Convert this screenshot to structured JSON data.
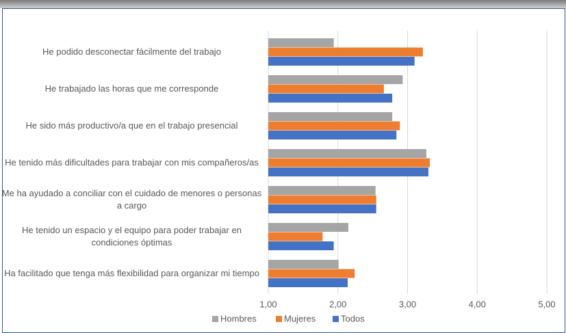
{
  "chart_data": {
    "type": "bar",
    "orientation": "horizontal",
    "categories": [
      "He podido desconectar fácilmente del trabajo",
      "He trabajado las horas que me corresponde",
      "He sido más productivo/a que en el trabajo presencial",
      "He tenido más dificultades para trabajar con mis compañeros/as",
      "Me ha ayudado a conciliar con el cuidado de menores o personas a cargo",
      "He tenido un espacio y el equipo para poder trabajar en condiciones óptimas",
      "Ha facilitado que tenga más flexibilidad para organizar mi tiempo"
    ],
    "series": [
      {
        "name": "Hombres",
        "color": "#a5a5a5",
        "values": [
          1.94,
          2.93,
          2.78,
          3.27,
          2.54,
          2.15,
          2.01
        ]
      },
      {
        "name": "Mujeres",
        "color": "#ed7d31",
        "values": [
          3.22,
          2.66,
          2.89,
          3.32,
          2.55,
          1.78,
          2.24
        ]
      },
      {
        "name": "Todos",
        "color": "#4472c4",
        "values": [
          3.1,
          2.78,
          2.84,
          3.3,
          2.55,
          1.94,
          2.14
        ]
      }
    ],
    "xlim": [
      1,
      5
    ],
    "xticks": [
      {
        "value": 1,
        "label": "1,00"
      },
      {
        "value": 2,
        "label": "2,00"
      },
      {
        "value": 3,
        "label": "3,00"
      },
      {
        "value": 4,
        "label": "4,00"
      },
      {
        "value": 5,
        "label": "5,00"
      }
    ],
    "grid": true,
    "legend": "bottom"
  }
}
